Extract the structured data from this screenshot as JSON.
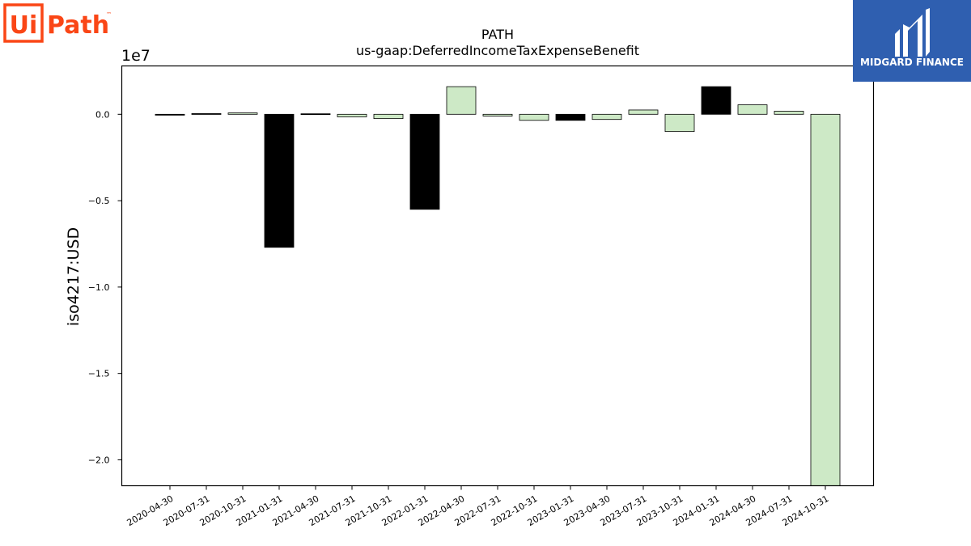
{
  "logos": {
    "left": {
      "text_ui": "Ui",
      "text_path": "Path",
      "tm": "™",
      "color": "#fa4616"
    },
    "right": {
      "text": "MIDGARD FINANCE",
      "bg": "#2f5fb0"
    }
  },
  "chart_data": {
    "type": "bar",
    "title": "PATH",
    "subtitle": "us-gaap:DeferredIncomeTaxExpenseBenefit",
    "xlabel": "",
    "ylabel": "iso4217:USD",
    "scale_label": "1e7",
    "ylim": [
      -2.15,
      0.28
    ],
    "yticks": [
      0.0,
      -0.5,
      -1.0,
      -1.5,
      -2.0
    ],
    "ytick_labels": [
      "0.0",
      "−0.5",
      "−1.0",
      "−1.5",
      "−2.0"
    ],
    "grid": false,
    "categories": [
      "2020-04-30",
      "2020-07-31",
      "2020-10-31",
      "2021-01-31",
      "2021-04-30",
      "2021-07-31",
      "2021-10-31",
      "2022-01-31",
      "2022-04-30",
      "2022-07-31",
      "2022-10-31",
      "2023-01-31",
      "2023-04-30",
      "2023-07-31",
      "2023-10-31",
      "2024-01-31",
      "2024-04-30",
      "2024-07-31",
      "2024-10-31"
    ],
    "values": [
      -0.005,
      0.004,
      0.008,
      -0.77,
      0.003,
      -0.015,
      -0.025,
      -0.55,
      0.16,
      -0.01,
      -0.035,
      -0.035,
      -0.03,
      0.025,
      -0.1,
      0.16,
      0.055,
      0.018,
      -2.15
    ],
    "colors": [
      "#000000",
      "#000000",
      "#cde9c6",
      "#000000",
      "#000000",
      "#cde9c6",
      "#cde9c6",
      "#000000",
      "#cde9c6",
      "#cde9c6",
      "#cde9c6",
      "#000000",
      "#cde9c6",
      "#cde9c6",
      "#cde9c6",
      "#000000",
      "#cde9c6",
      "#cde9c6",
      "#cde9c6"
    ]
  }
}
